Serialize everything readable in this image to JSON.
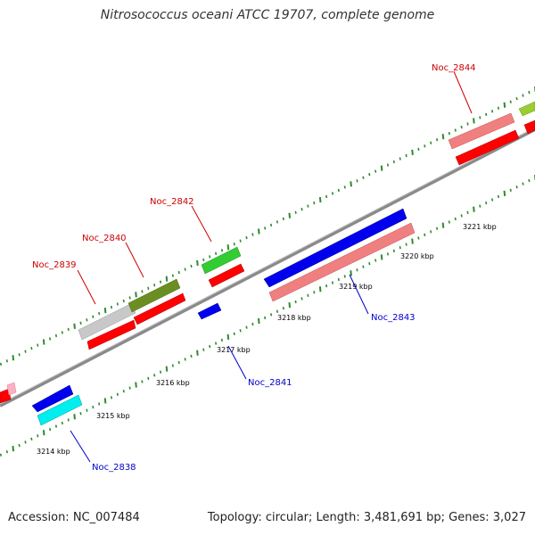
{
  "title": "Nitrosococcus oceani ATCC 19707, complete genome",
  "accession": "Accession: NC_007484",
  "topology": "Topology: circular; Length: 3,481,691 bp; Genes: 3,027",
  "colors": {
    "backbone": "#808080",
    "tick": "#2d8a2d",
    "label_forward": "#cc0000",
    "label_reverse": "#0000cc"
  },
  "ticks": [
    {
      "label": "3214 kbp"
    },
    {
      "label": "3215 kbp"
    },
    {
      "label": "3216 kbp"
    },
    {
      "label": "3217 kbp"
    },
    {
      "label": "3218 kbp"
    },
    {
      "label": "3219 kbp"
    },
    {
      "label": "3220 kbp"
    },
    {
      "label": "3221 kbp"
    }
  ],
  "gene_labels": [
    {
      "name": "Noc_2839"
    },
    {
      "name": "Noc_2840"
    },
    {
      "name": "Noc_2842"
    },
    {
      "name": "Noc_2844"
    },
    {
      "name": "Noc_2838"
    },
    {
      "name": "Noc_2841"
    },
    {
      "name": "Noc_2843"
    }
  ]
}
